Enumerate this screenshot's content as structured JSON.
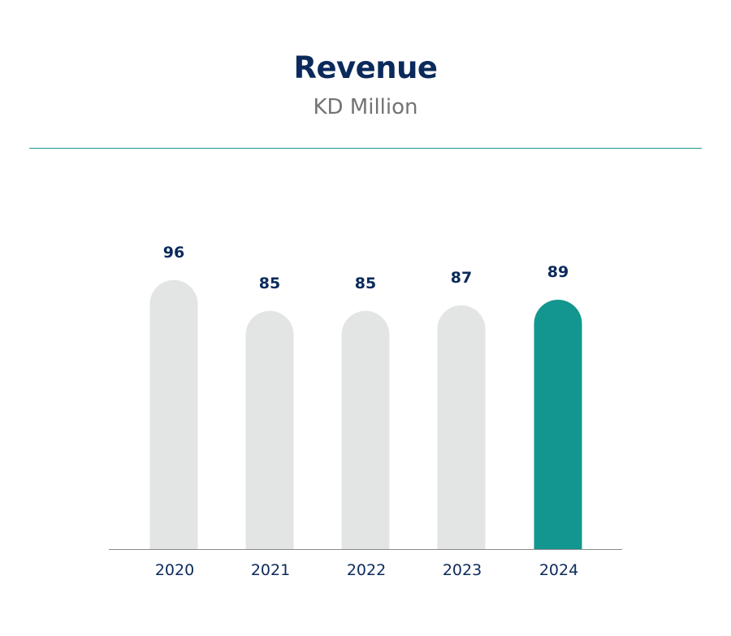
{
  "chart_data": {
    "type": "bar",
    "title": "Revenue",
    "subtitle": "KD Million",
    "categories": [
      "2020",
      "2021",
      "2022",
      "2023",
      "2024"
    ],
    "values": [
      96,
      85,
      85,
      87,
      89
    ],
    "data_labels": [
      "96",
      "85",
      "85",
      "87",
      "89"
    ],
    "xlabel": "",
    "ylabel": "",
    "grid": false,
    "highlight_index": 4,
    "colors": {
      "bar": "#e3e4e4",
      "highlight": "#13968f",
      "text": "#0b2a5b",
      "subtitle": "#737373",
      "divider": "#1a9a90",
      "baseline": "#8a8a8a"
    }
  }
}
